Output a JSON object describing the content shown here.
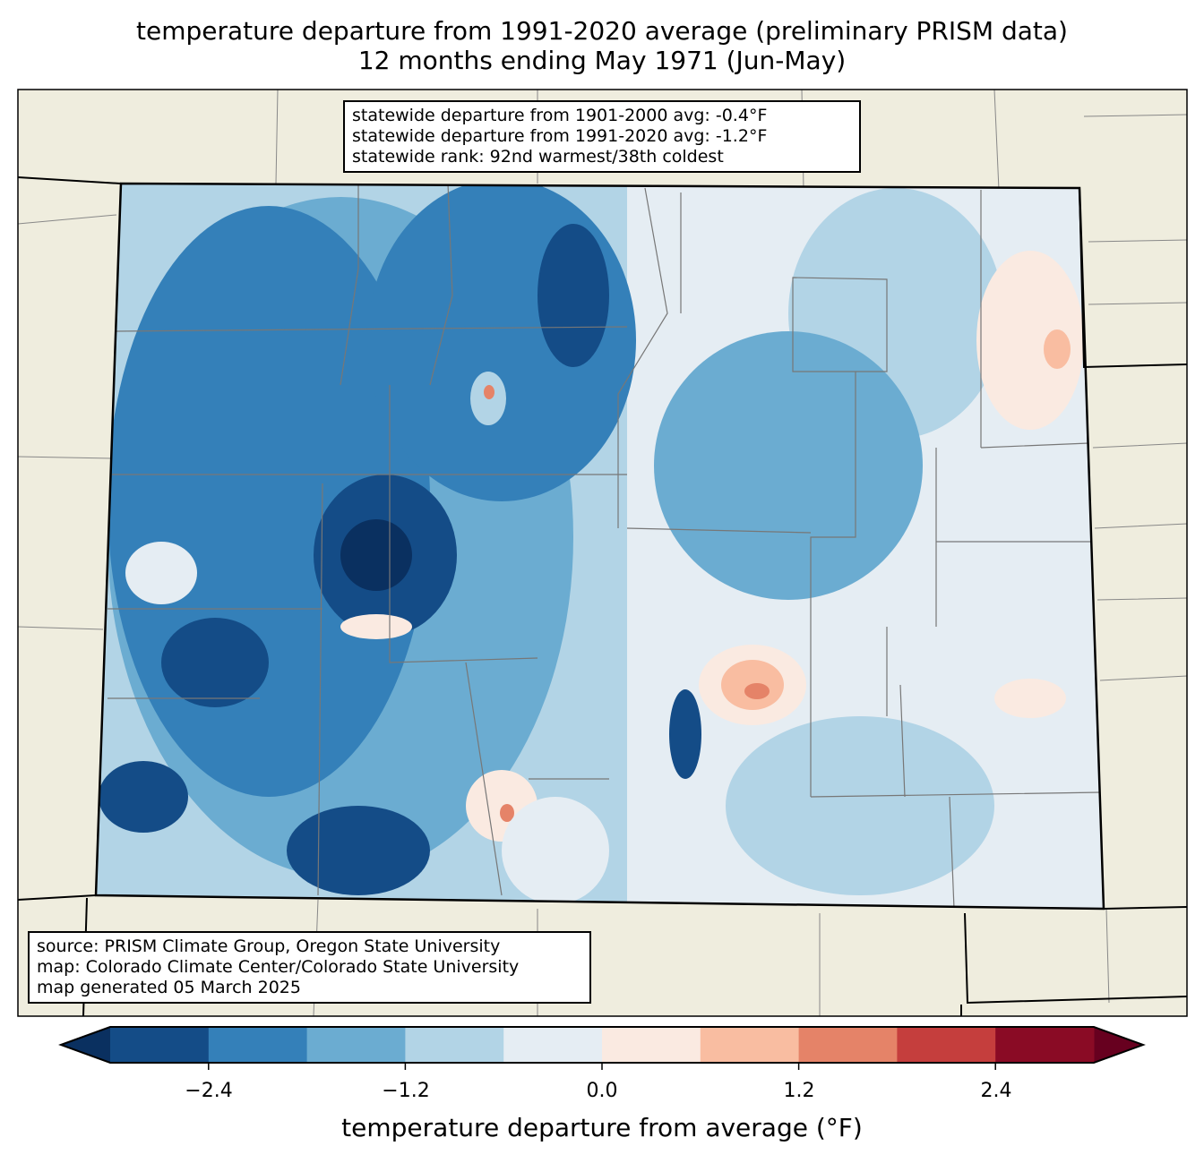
{
  "title": {
    "line1": "temperature departure from 1991-2020 average (preliminary PRISM data)",
    "line2": "12 months ending May 1971 (Jun-May)"
  },
  "stats_box": {
    "line1": "statewide departure from 1901-2000 avg: -0.4°F",
    "line2": "statewide departure from 1991-2020 avg: -1.2°F",
    "line3": "statewide rank: 92nd warmest/38th coldest"
  },
  "source_box": {
    "line1": "source: PRISM Climate Group, Oregon State University",
    "line2": "map: Colorado Climate Center/Colorado State University",
    "line3": "map generated 05 March 2025"
  },
  "colorbar": {
    "label": "temperature departure from average (°F)",
    "ticks": [
      "−2.4",
      "−1.2",
      "0.0",
      "1.2",
      "2.4"
    ],
    "levels": [
      -3.0,
      -2.4,
      -1.8,
      -1.2,
      -0.6,
      0.0,
      0.6,
      1.2,
      1.8,
      2.4,
      3.0
    ],
    "colors": [
      "#144c87",
      "#3480b9",
      "#6bacd1",
      "#b2d4e6",
      "#e5edf3",
      "#faeae1",
      "#f9bda1",
      "#e58368",
      "#c53e3d",
      "#8a0b25"
    ],
    "under_color": "#0a3060",
    "over_color": "#67001f"
  },
  "map": {
    "land_color": "#efedde",
    "region": "Colorado"
  }
}
